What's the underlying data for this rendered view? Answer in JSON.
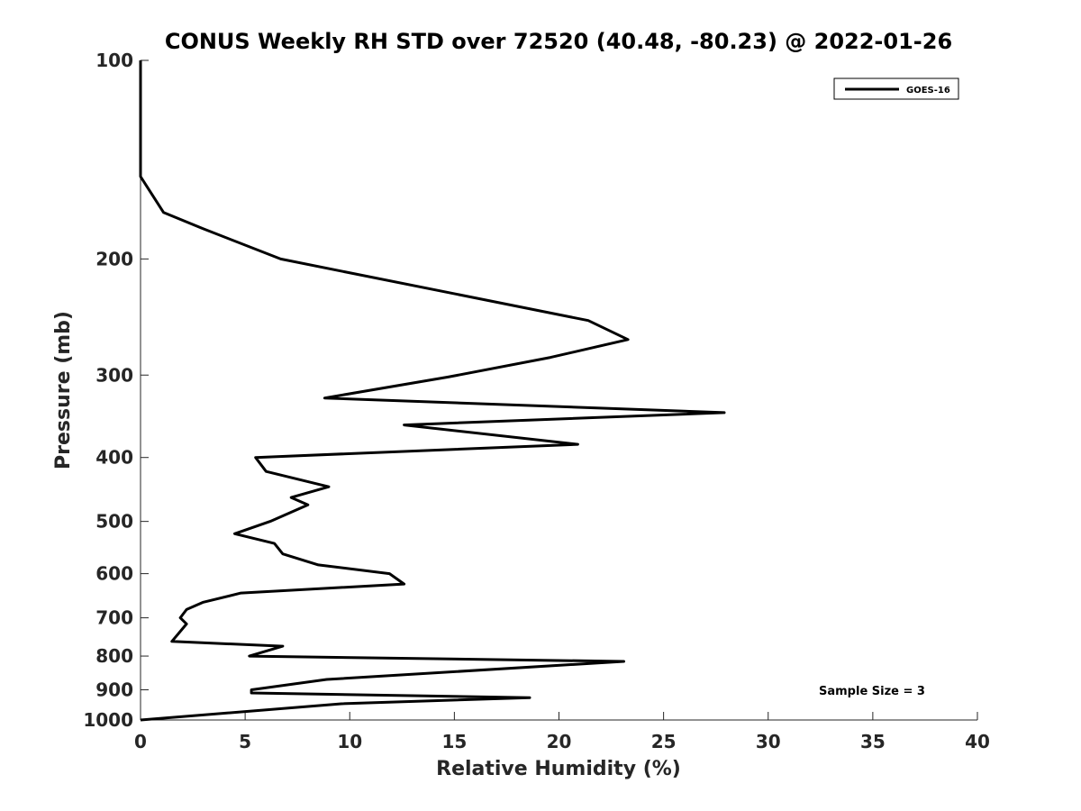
{
  "chart_data": {
    "type": "line",
    "title": "CONUS Weekly RH STD over 72520 (40.48, -80.23) @ 2022-01-26",
    "xlabel": "Relative Humidity (%)",
    "ylabel": "Pressure (mb)",
    "xlim": [
      0,
      40
    ],
    "ylim": [
      100,
      1000
    ],
    "yscale": "log",
    "y_reversed": true,
    "grid": false,
    "xticks": [
      0,
      5,
      10,
      15,
      20,
      25,
      30,
      35,
      40
    ],
    "yticks": [
      100,
      200,
      300,
      400,
      500,
      600,
      700,
      800,
      900,
      1000
    ],
    "legend": {
      "position": "top-right",
      "entries": [
        "GOES-16"
      ]
    },
    "annotation": "Sample Size = 3",
    "series": [
      {
        "name": "GOES-16",
        "color": "#000000",
        "x": [
          0,
          0,
          1.1,
          3.0,
          6.7,
          21.4,
          23.3,
          19.6,
          14.7,
          8.8,
          27.9,
          12.6,
          20.9,
          5.5,
          6.0,
          9.0,
          7.2,
          8.0,
          6.2,
          4.5,
          6.4,
          6.8,
          8.5,
          11.9,
          12.6,
          4.8,
          3.0,
          2.2,
          1.9,
          2.2,
          1.5,
          6.8,
          5.2,
          23.1,
          8.9,
          5.3,
          5.3,
          18.6,
          9.6,
          0
        ],
        "y": [
          100,
          150,
          170,
          180,
          200,
          248,
          265,
          282,
          302,
          325,
          342,
          357,
          382,
          400,
          420,
          443,
          460,
          472,
          500,
          522,
          540,
          560,
          582,
          600,
          622,
          642,
          663,
          680,
          700,
          715,
          760,
          773,
          800,
          815,
          868,
          900,
          910,
          925,
          945,
          1000
        ]
      }
    ]
  }
}
